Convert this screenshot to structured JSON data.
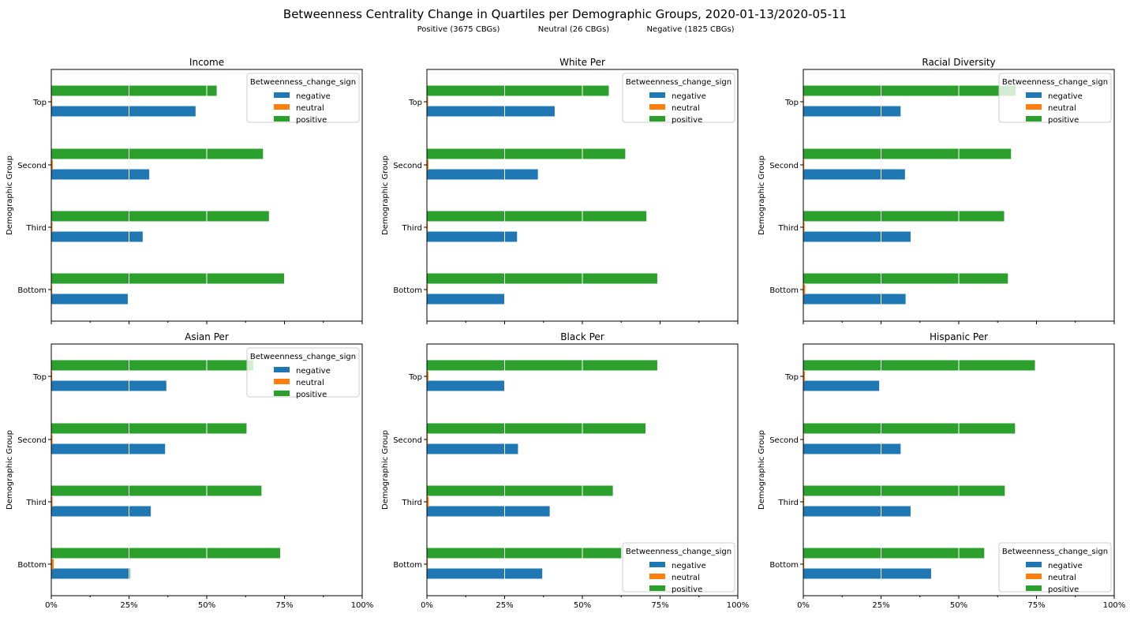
{
  "title": "Betweenness Centrality Change in Quartiles per Demographic Groups, 2020-01-13/2020-05-11",
  "subtitles": [
    "Positive (3675 CBGs)",
    "Neutral (26 CBGs)",
    "Negative (1825 CBGs)"
  ],
  "colors": {
    "negative": "#1f77b4",
    "neutral": "#ff7f0e",
    "positive": "#2ca02c"
  },
  "chart_data": [
    {
      "type": "bar",
      "orientation": "horizontal",
      "title": "Income",
      "ylabel": "Demographic Group",
      "xlabel": "",
      "categories": [
        "Bottom",
        "Third",
        "Second",
        "Top"
      ],
      "xlim": [
        0,
        100
      ],
      "xticks": [
        "0%",
        "25%",
        "50%",
        "75%",
        "100%"
      ],
      "legend": {
        "title": "Betweenness_change_sign",
        "loc": "top-right"
      },
      "series": [
        {
          "name": "negative",
          "values": [
            24.6,
            29.4,
            31.5,
            46.4
          ]
        },
        {
          "name": "neutral",
          "values": [
            0.3,
            0.4,
            0.5,
            0.3
          ]
        },
        {
          "name": "positive",
          "values": [
            75.0,
            70.0,
            68.1,
            53.2
          ]
        }
      ]
    },
    {
      "type": "bar",
      "orientation": "horizontal",
      "title": "White Per",
      "ylabel": "Demographic Group",
      "xlabel": "",
      "categories": [
        "Bottom",
        "Third",
        "Second",
        "Top"
      ],
      "xlim": [
        0,
        100
      ],
      "xticks": [
        "0%",
        "25%",
        "50%",
        "75%",
        "100%"
      ],
      "legend": {
        "title": "Betweenness_change_sign",
        "loc": "top-right"
      },
      "series": [
        {
          "name": "negative",
          "values": [
            25.1,
            29.0,
            35.7,
            41.1
          ]
        },
        {
          "name": "neutral",
          "values": [
            0.3,
            0.3,
            0.5,
            0.4
          ]
        },
        {
          "name": "positive",
          "values": [
            74.1,
            70.6,
            63.8,
            58.5
          ]
        }
      ]
    },
    {
      "type": "bar",
      "orientation": "horizontal",
      "title": "Racial Diversity",
      "ylabel": "Demographic Group",
      "xlabel": "",
      "categories": [
        "Bottom",
        "Third",
        "Second",
        "Top"
      ],
      "xlim": [
        0,
        100
      ],
      "xticks": [
        "0%",
        "25%",
        "50%",
        "75%",
        "100%"
      ],
      "legend": {
        "title": "Betweenness_change_sign",
        "loc": "top-right"
      },
      "series": [
        {
          "name": "negative",
          "values": [
            32.9,
            34.5,
            32.7,
            31.3
          ]
        },
        {
          "name": "neutral",
          "values": [
            0.6,
            0.4,
            0.3,
            0.2
          ]
        },
        {
          "name": "positive",
          "values": [
            65.8,
            64.6,
            66.8,
            68.3
          ]
        }
      ]
    },
    {
      "type": "bar",
      "orientation": "horizontal",
      "title": "Asian Per",
      "ylabel": "Demographic Group",
      "xlabel": "",
      "categories": [
        "Bottom",
        "Third",
        "Second",
        "Top"
      ],
      "xlim": [
        0,
        100
      ],
      "xticks": [
        "0%",
        "25%",
        "50%",
        "75%",
        "100%"
      ],
      "legend": {
        "title": "Betweenness_change_sign",
        "loc": "top-right"
      },
      "series": [
        {
          "name": "negative",
          "values": [
            25.3,
            32.0,
            36.6,
            37.0
          ]
        },
        {
          "name": "neutral",
          "values": [
            0.8,
            0.4,
            0.4,
            0.3
          ]
        },
        {
          "name": "positive",
          "values": [
            73.6,
            67.6,
            62.8,
            65.0
          ]
        }
      ]
    },
    {
      "type": "bar",
      "orientation": "horizontal",
      "title": "Black Per",
      "ylabel": "Demographic Group",
      "xlabel": "",
      "categories": [
        "Bottom",
        "Third",
        "Second",
        "Top"
      ],
      "xlim": [
        0,
        100
      ],
      "xticks": [
        "0%",
        "25%",
        "50%",
        "75%",
        "100%"
      ],
      "legend": {
        "title": "Betweenness_change_sign",
        "loc": "bottom-right"
      },
      "series": [
        {
          "name": "negative",
          "values": [
            37.1,
            39.5,
            29.3,
            25.1
          ]
        },
        {
          "name": "neutral",
          "values": [
            0.3,
            0.6,
            0.3,
            0.5
          ]
        },
        {
          "name": "positive",
          "values": [
            62.5,
            59.8,
            70.3,
            74.1
          ]
        }
      ]
    },
    {
      "type": "bar",
      "orientation": "horizontal",
      "title": "Hispanic Per",
      "ylabel": "Demographic Group",
      "xlabel": "",
      "categories": [
        "Bottom",
        "Third",
        "Second",
        "Top"
      ],
      "xlim": [
        0,
        100
      ],
      "xticks": [
        "0%",
        "25%",
        "50%",
        "75%",
        "100%"
      ],
      "legend": {
        "title": "Betweenness_change_sign",
        "loc": "bottom-right"
      },
      "series": [
        {
          "name": "negative",
          "values": [
            41.1,
            34.5,
            31.3,
            24.4
          ]
        },
        {
          "name": "neutral",
          "values": [
            0.3,
            0.3,
            0.2,
            0.5
          ]
        },
        {
          "name": "positive",
          "values": [
            58.2,
            64.8,
            68.1,
            74.5
          ]
        }
      ]
    }
  ]
}
